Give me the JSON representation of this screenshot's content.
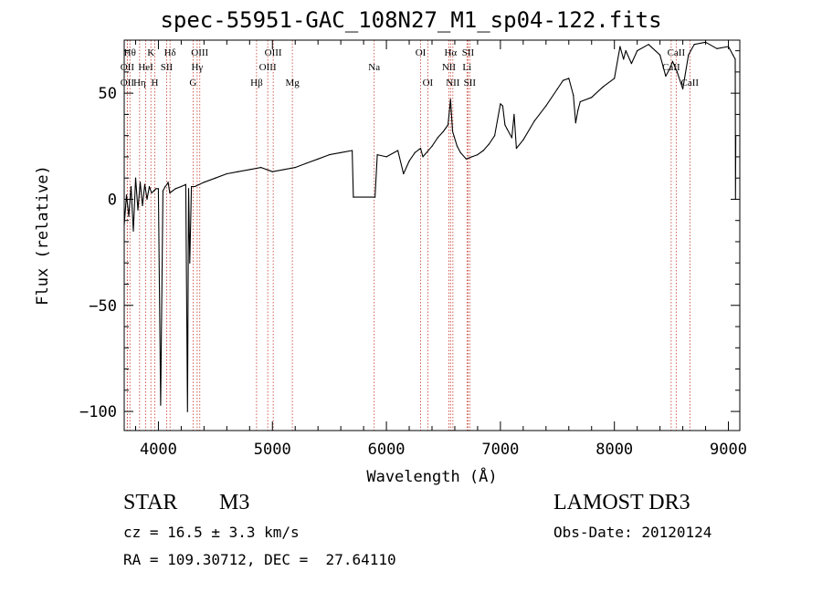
{
  "title": "spec-55951-GAC_108N27_M1_sp04-122.fits",
  "info": {
    "object_class": "STAR",
    "subclass": "M3",
    "survey": "LAMOST DR3",
    "redshift": "cz = 16.5 ± 3.3 km/s",
    "obs_date": "Obs-Date: 20120124",
    "coords": "RA = 109.30712, DEC =  27.64110"
  },
  "chart_data": {
    "type": "line",
    "xlabel": "Wavelength (Å)",
    "ylabel": "Flux (relative)",
    "xlim": [
      3700,
      9100
    ],
    "ylim": [
      -109,
      75
    ],
    "xticks": [
      4000,
      5000,
      6000,
      7000,
      8000,
      9000
    ],
    "yticks": [
      -100,
      -50,
      0,
      50
    ],
    "series": [
      {
        "color": "#000000",
        "x": [
          3700,
          3720,
          3740,
          3760,
          3780,
          3800,
          3820,
          3840,
          3860,
          3880,
          3900,
          3920,
          3940,
          3960,
          3980,
          4000,
          4020,
          4040,
          4060,
          4075,
          4085,
          4100,
          4150,
          4200,
          4240,
          4255,
          4265,
          4275,
          4290,
          4320,
          4400,
          4500,
          4600,
          4700,
          4800,
          4900,
          5000,
          5100,
          5200,
          5300,
          5400,
          5500,
          5600,
          5700,
          5710,
          5900,
          5920,
          6000,
          6100,
          6150,
          6200,
          6250,
          6300,
          6320,
          6400,
          6450,
          6500,
          6540,
          6563,
          6580,
          6620,
          6650,
          6700,
          6750,
          6800,
          6850,
          6900,
          6950,
          7000,
          7020,
          7040,
          7060,
          7100,
          7120,
          7140,
          7200,
          7300,
          7400,
          7500,
          7550,
          7600,
          7640,
          7660,
          7680,
          7700,
          7800,
          7900,
          8000,
          8050,
          8080,
          8100,
          8150,
          8200,
          8300,
          8400,
          8450,
          8490,
          8510,
          8550,
          8600,
          8650,
          8700,
          8800,
          8900,
          9000,
          9040,
          9060,
          9062,
          9065
        ],
        "y": [
          -12,
          2,
          -8,
          6,
          -15,
          10,
          -5,
          8,
          -3,
          7,
          0,
          6,
          3,
          4,
          5,
          5,
          -97,
          4,
          6,
          7,
          8,
          3,
          5,
          6,
          7,
          -100,
          5,
          -30,
          6,
          6,
          8,
          10,
          12,
          13,
          14,
          15,
          13,
          14,
          15,
          17,
          19,
          21,
          22,
          23,
          1,
          1,
          21,
          20,
          23,
          12,
          18,
          22,
          24,
          20,
          25,
          29,
          32,
          35,
          47,
          32,
          25,
          22,
          19,
          20,
          21,
          23,
          26,
          30,
          45,
          44,
          35,
          33,
          29,
          40,
          24,
          28,
          37,
          44,
          52,
          56,
          57,
          49,
          36,
          42,
          46,
          48,
          53,
          57,
          72,
          66,
          70,
          64,
          70,
          73,
          68,
          58,
          62,
          65,
          60,
          52,
          68,
          73,
          74,
          71,
          72,
          68,
          66,
          0,
          30
        ]
      }
    ],
    "spectral_lines": [
      {
        "wl": 3750,
        "label": "Hθ",
        "row": 0
      },
      {
        "wl": 3727,
        "label": "OII",
        "row": 1
      },
      {
        "wl": 3727,
        "label": "OII",
        "row": 2
      },
      {
        "wl": 3835,
        "label": "Hη",
        "row": 2
      },
      {
        "wl": 3889,
        "label": "HeI",
        "row": 1
      },
      {
        "wl": 3934,
        "label": "K",
        "row": 0
      },
      {
        "wl": 3968,
        "label": "H",
        "row": 2
      },
      {
        "wl": 4072,
        "label": "SII",
        "row": 1
      },
      {
        "wl": 4102,
        "label": "Hδ",
        "row": 0
      },
      {
        "wl": 4304,
        "label": "G",
        "row": 2
      },
      {
        "wl": 4340,
        "label": "Hγ",
        "row": 1
      },
      {
        "wl": 4363,
        "label": "OIII",
        "row": 0
      },
      {
        "wl": 4861,
        "label": "Hβ",
        "row": 2
      },
      {
        "wl": 4959,
        "label": "OIII",
        "row": 1
      },
      {
        "wl": 5007,
        "label": "OIII",
        "row": 0
      },
      {
        "wl": 5175,
        "label": "Mg",
        "row": 2
      },
      {
        "wl": 5893,
        "label": "Na",
        "row": 1
      },
      {
        "wl": 6300,
        "label": "OI",
        "row": 0
      },
      {
        "wl": 6363,
        "label": "OI",
        "row": 2
      },
      {
        "wl": 6548,
        "label": "NII",
        "row": 1
      },
      {
        "wl": 6563,
        "label": "Hα",
        "row": 0
      },
      {
        "wl": 6583,
        "label": "NII",
        "row": 2
      },
      {
        "wl": 6707,
        "label": "Li",
        "row": 1
      },
      {
        "wl": 6716,
        "label": "SII",
        "row": 0
      },
      {
        "wl": 6731,
        "label": "SII",
        "row": 2
      },
      {
        "wl": 8498,
        "label": "CaII",
        "row": 1
      },
      {
        "wl": 8542,
        "label": "CaII",
        "row": 0
      },
      {
        "wl": 8662,
        "label": "CaII",
        "row": 2
      }
    ],
    "line_color": "#c0392b",
    "grid": false,
    "legend": "none"
  }
}
